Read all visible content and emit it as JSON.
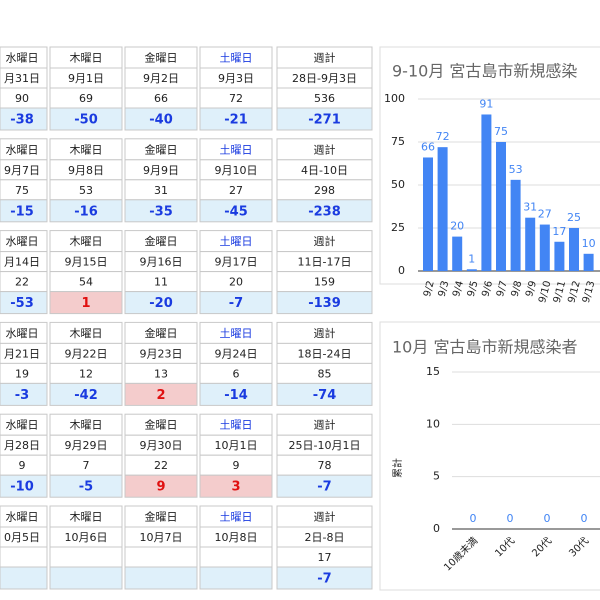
{
  "tables": [
    {
      "header": [
        "水曜日",
        "木曜日",
        "金曜日",
        "土曜日",
        "週計"
      ],
      "dates": [
        "月31日",
        "9月1日",
        "9月2日",
        "9月3日",
        "28日-9月3日"
      ],
      "counts": [
        90,
        69,
        66,
        72,
        536
      ],
      "diffs": [
        -38,
        -50,
        -40,
        -21,
        -271
      ]
    },
    {
      "header": [
        "水曜日",
        "木曜日",
        "金曜日",
        "土曜日",
        "週計"
      ],
      "dates": [
        "9月7日",
        "9月8日",
        "9月9日",
        "9月10日",
        "4日-10日"
      ],
      "counts": [
        75,
        53,
        31,
        27,
        298
      ],
      "diffs": [
        -15,
        -16,
        -35,
        -45,
        -238
      ]
    },
    {
      "header": [
        "水曜日",
        "木曜日",
        "金曜日",
        "土曜日",
        "週計"
      ],
      "dates": [
        "月14日",
        "9月15日",
        "9月16日",
        "9月17日",
        "11日-17日"
      ],
      "counts": [
        22,
        54,
        11,
        20,
        159
      ],
      "diffs": [
        -53,
        1,
        -20,
        -7,
        -139
      ]
    },
    {
      "header": [
        "水曜日",
        "木曜日",
        "金曜日",
        "土曜日",
        "週計"
      ],
      "dates": [
        "月21日",
        "9月22日",
        "9月23日",
        "9月24日",
        "18日-24日"
      ],
      "counts": [
        19,
        12,
        13,
        6,
        85
      ],
      "diffs": [
        -3,
        -42,
        2,
        -14,
        -74
      ]
    },
    {
      "header": [
        "水曜日",
        "木曜日",
        "金曜日",
        "土曜日",
        "週計"
      ],
      "dates": [
        "月28日",
        "9月29日",
        "9月30日",
        "10月1日",
        "25日-10月1日"
      ],
      "counts": [
        9,
        7,
        22,
        9,
        78
      ],
      "diffs": [
        -10,
        -5,
        9,
        3,
        -7
      ]
    },
    {
      "header": [
        "水曜日",
        "木曜日",
        "金曜日",
        "土曜日",
        "週計"
      ],
      "dates": [
        "0月5日",
        "10月6日",
        "10月7日",
        "10月8日",
        "2日-8日"
      ],
      "counts": [
        null,
        null,
        null,
        null,
        17
      ],
      "diffs": [
        null,
        null,
        null,
        null,
        -7
      ]
    }
  ],
  "chart_data": [
    {
      "type": "bar",
      "title": "9-10月 宮古島市新規感染",
      "categories": [
        "9/2",
        "9/3",
        "9/4",
        "9/5",
        "9/6",
        "9/7",
        "9/8",
        "9/9",
        "9/10",
        "9/11",
        "9/12",
        "9/13"
      ],
      "values": [
        66,
        72,
        20,
        1,
        91,
        75,
        53,
        31,
        27,
        17,
        25,
        10
      ],
      "color": "#4285f4",
      "ylim": [
        0,
        100
      ],
      "yticks": [
        0,
        25,
        50,
        75,
        100
      ],
      "grid": true
    },
    {
      "type": "bar",
      "title": "10月 宮古島市新規感染者",
      "y_label": "累計",
      "categories": [
        "10歳未満",
        "10代",
        "20代",
        "30代"
      ],
      "values": [
        0,
        0,
        0,
        0
      ],
      "color": "#4285f4",
      "ylim": [
        0,
        15
      ],
      "yticks": [
        0,
        5,
        10,
        15
      ],
      "grid": true
    }
  ]
}
